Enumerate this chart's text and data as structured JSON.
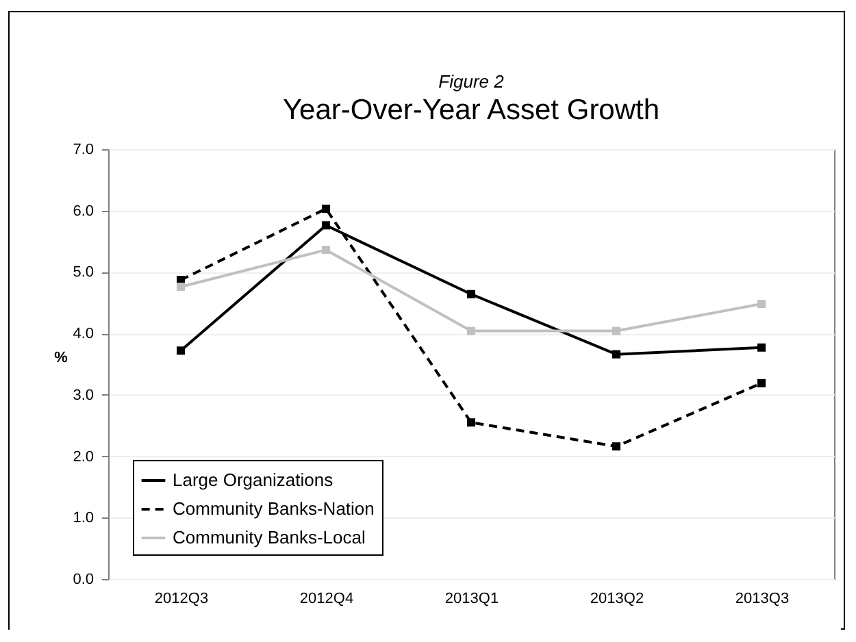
{
  "chart_data": {
    "type": "line",
    "title": "Year-Over-Year Asset Growth",
    "subtitle": "Figure 2",
    "ylabel": "%",
    "categories": [
      "2012Q3",
      "2012Q4",
      "2013Q1",
      "2013Q2",
      "2013Q3"
    ],
    "series": [
      {
        "name": "Large Organizations",
        "color": "#000000",
        "line_style": "solid",
        "values": [
          3.72,
          5.76,
          4.64,
          3.66,
          3.77
        ]
      },
      {
        "name": "Community Banks-Nation",
        "color": "#000000",
        "line_style": "dashed",
        "values": [
          4.87,
          6.03,
          2.55,
          2.16,
          3.19
        ]
      },
      {
        "name": "Community Banks-Local",
        "color": "#c0c0c0",
        "line_style": "solid",
        "values": [
          4.76,
          5.36,
          4.04,
          4.04,
          4.48
        ]
      }
    ],
    "ylim": [
      0,
      7
    ],
    "yticks": [
      {
        "value": 0,
        "label": "0.0"
      },
      {
        "value": 1,
        "label": "1.0"
      },
      {
        "value": 2,
        "label": "2.0"
      },
      {
        "value": 3,
        "label": "3.0"
      },
      {
        "value": 4,
        "label": "4.0"
      },
      {
        "value": 5,
        "label": "5.0"
      },
      {
        "value": 6,
        "label": "6.0"
      },
      {
        "value": 7,
        "label": "7.0"
      }
    ],
    "grid": "y",
    "legend": "bottom left",
    "marker": "square"
  }
}
